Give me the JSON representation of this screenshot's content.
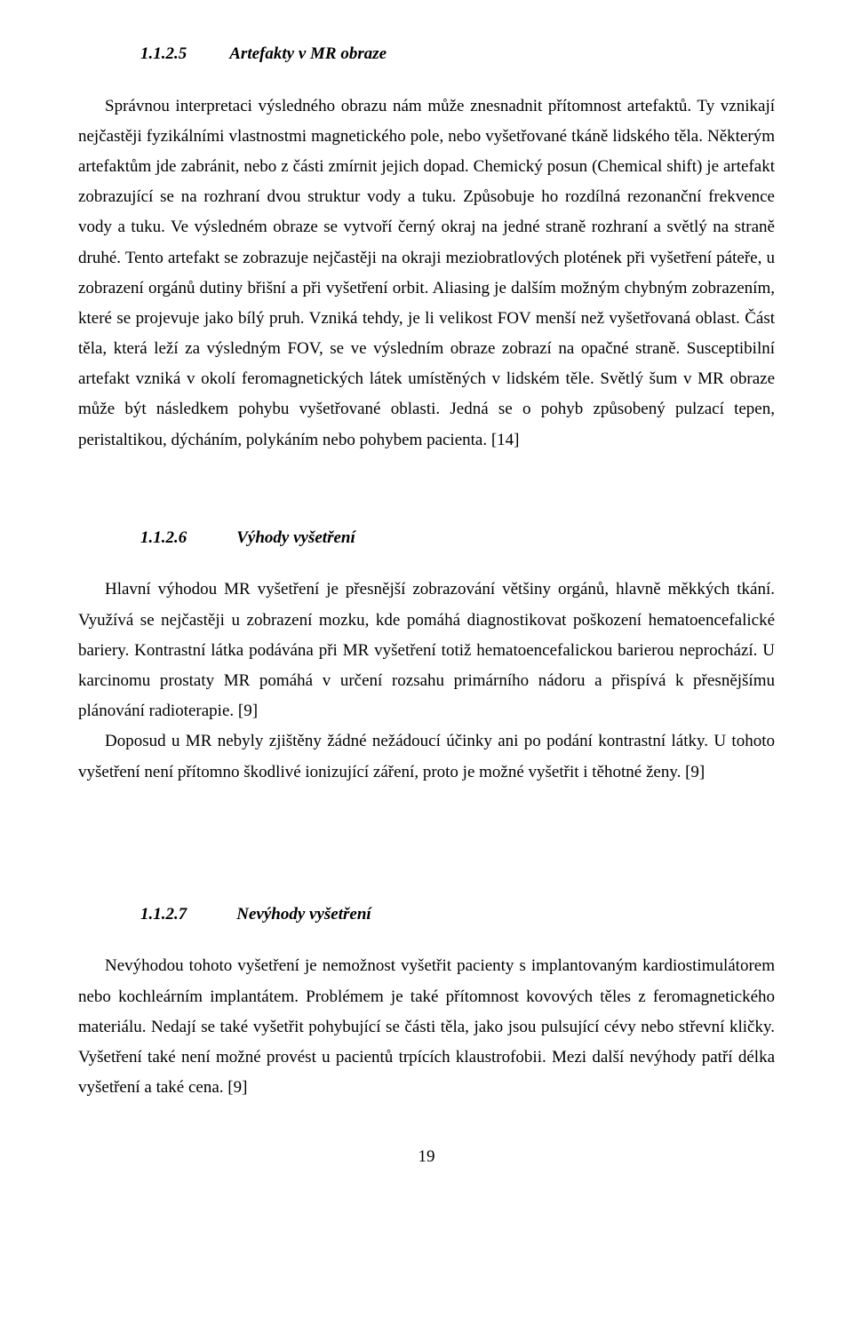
{
  "section1": {
    "number": "1.1.2.5",
    "title": "Artefakty v MR obraze",
    "body": "Správnou interpretaci výsledného obrazu nám může znesnadnit přítomnost artefaktů. Ty vznikají nejčastěji fyzikálními vlastnostmi magnetického pole, nebo vyšetřované tkáně lidského těla. Některým artefaktům jde zabránit, nebo z části zmírnit jejich dopad. Chemický posun (Chemical shift) je artefakt zobrazující se na rozhraní dvou struktur vody a tuku. Způsobuje ho rozdílná rezonanční frekvence vody a tuku. Ve výsledném obraze se vytvoří černý okraj na jedné straně rozhraní a světlý na straně druhé. Tento artefakt se zobrazuje nejčastěji na okraji meziobratlových plotének při vyšetření páteře, u zobrazení orgánů dutiny břišní a při vyšetření orbit. Aliasing je dalším možným chybným zobrazením, které se projevuje jako bílý pruh. Vzniká tehdy, je li velikost FOV menší než vyšetřovaná oblast. Část těla, která leží za výsledným FOV, se ve výsledním obraze zobrazí na opačné straně. Susceptibilní artefakt vzniká v okolí feromagnetických látek umístěných v lidském těle. Světlý šum v MR obraze může být následkem pohybu vyšetřované oblasti. Jedná se o pohyb způsobený pulzací tepen, peristaltikou, dýcháním, polykáním nebo pohybem pacienta. [14]"
  },
  "section2": {
    "number": "1.1.2.6",
    "title": "Výhody vyšetření",
    "para1": "Hlavní výhodou MR vyšetření je přesnější zobrazování většiny orgánů, hlavně měkkých tkání. Využívá se nejčastěji u zobrazení mozku, kde pomáhá diagnostikovat poškození hematoencefalické bariery. Kontrastní látka podávána při MR vyšetření totiž hematoencefalickou barierou neprochází. U karcinomu prostaty MR pomáhá v určení rozsahu primárního nádoru a přispívá k přesnějšímu plánování radioterapie. [9]",
    "para2": "Doposud u MR nebyly zjištěny žádné nežádoucí účinky ani po podání kontrastní látky. U tohoto vyšetření není přítomno škodlivé ionizující záření, proto je možné vyšetřit i těhotné ženy. [9]"
  },
  "section3": {
    "number": "1.1.2.7",
    "title": "Nevýhody vyšetření",
    "body": "Nevýhodou tohoto vyšetření je nemožnost vyšetřit pacienty s implantovaným kardiostimulátorem nebo kochleárním implantátem. Problémem je také přítomnost kovových těles z feromagnetického materiálu. Nedají se také vyšetřit pohybující se části těla, jako jsou pulsující cévy nebo střevní kličky. Vyšetření také není možné provést u pacientů trpících klaustrofobii. Mezi další nevýhody patří délka vyšetření a také cena. [9]"
  },
  "pageNumber": "19"
}
